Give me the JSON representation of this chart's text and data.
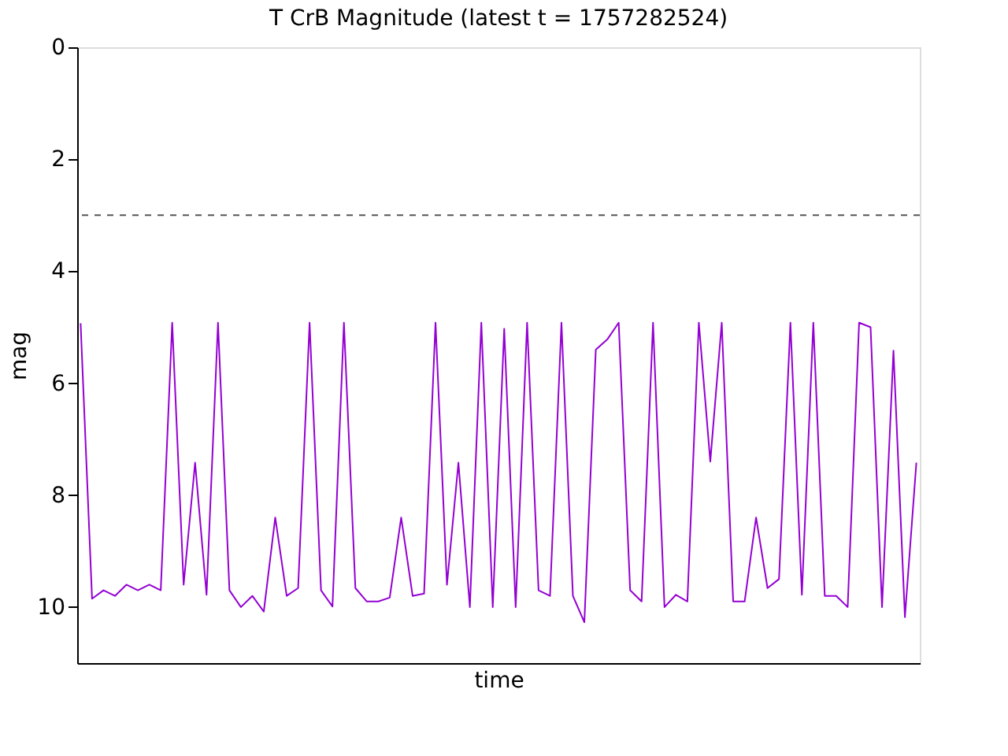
{
  "chart_data": {
    "type": "line",
    "title": "T CrB Magnitude (latest t = 1757282524)",
    "xlabel": "time",
    "ylabel": "mag",
    "categories": [
      null,
      null,
      null,
      null,
      null,
      null,
      null,
      null,
      null,
      null,
      null,
      null,
      null,
      null,
      null,
      null,
      null,
      null,
      null,
      null,
      null,
      null,
      null,
      null,
      null,
      null,
      null,
      null,
      null,
      null,
      null,
      null,
      null,
      null,
      null,
      null,
      null,
      null,
      null,
      null,
      null,
      null,
      null,
      null,
      null,
      null,
      null,
      null,
      null,
      null,
      null,
      null,
      null,
      null,
      null,
      null,
      null,
      null,
      null,
      null,
      null,
      null,
      null,
      null,
      null,
      null,
      null,
      null,
      null,
      null,
      null,
      null,
      null,
      null
    ],
    "values": [
      4.93,
      9.85,
      9.7,
      9.8,
      9.6,
      9.7,
      9.6,
      9.7,
      4.92,
      9.6,
      7.42,
      9.78,
      4.92,
      9.7,
      10.0,
      9.8,
      10.08,
      8.4,
      9.8,
      9.66,
      4.92,
      9.7,
      9.99,
      4.92,
      9.66,
      9.9,
      9.9,
      9.83,
      8.4,
      9.8,
      9.76,
      4.92,
      9.6,
      7.42,
      10.0,
      4.92,
      10.0,
      5.03,
      10.0,
      4.92,
      9.7,
      9.8,
      4.92,
      9.8,
      10.27,
      5.4,
      5.22,
      4.92,
      9.7,
      9.9,
      4.92,
      10.0,
      9.78,
      9.9,
      4.92,
      7.4,
      4.92,
      9.9,
      9.9,
      8.4,
      9.66,
      9.5,
      4.92,
      9.78,
      4.92,
      9.8,
      9.8,
      10.0,
      4.92,
      5.0,
      10.0,
      5.42,
      10.18,
      7.42
    ],
    "color": "#9400d3",
    "ylim": [
      11,
      0
    ],
    "yticks": [
      0,
      2,
      4,
      6,
      8,
      10
    ],
    "tick_labels": "y",
    "ref_lines": [
      {
        "axis": "y",
        "value": 3,
        "color": "#555555",
        "line_style": "dashed"
      }
    ]
  }
}
